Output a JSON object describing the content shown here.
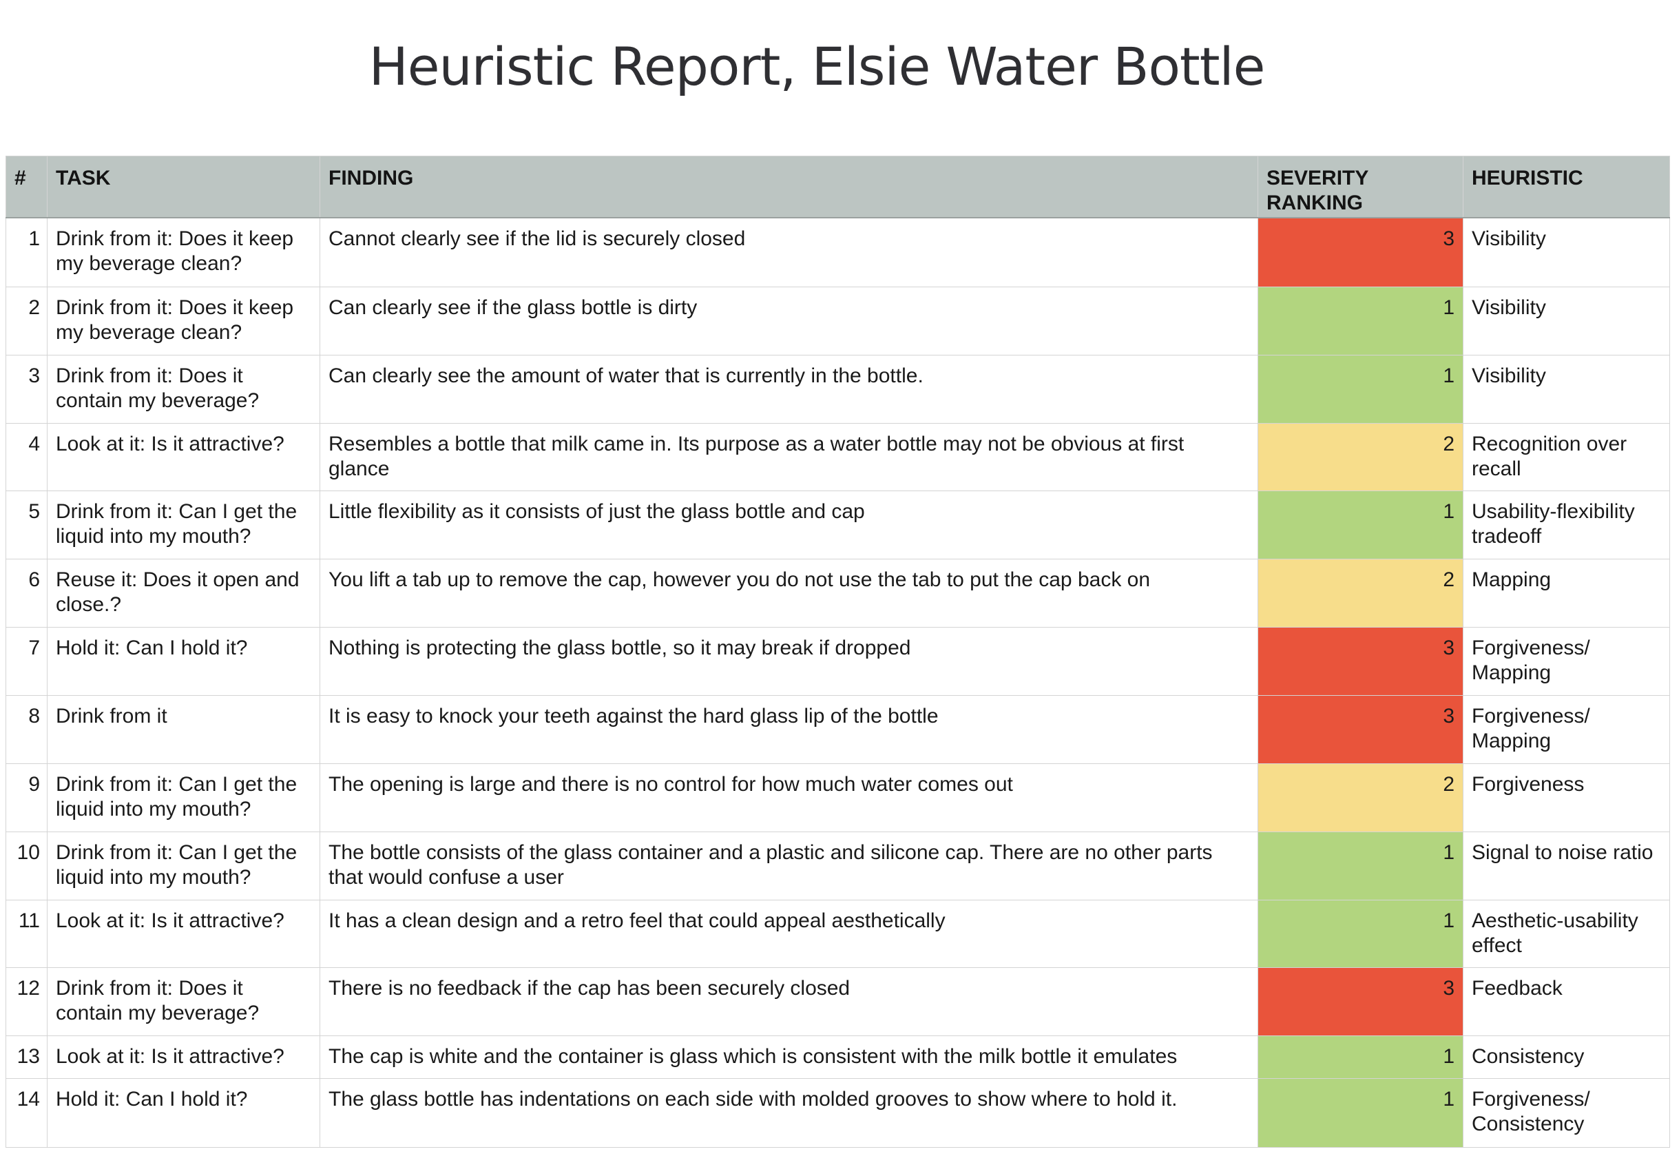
{
  "title": "Heuristic Report, Elsie Water Bottle",
  "columns": {
    "num": "#",
    "task": "TASK",
    "finding": "FINDING",
    "severity": "SEVERITY RANKING",
    "heuristic": "HEURISTIC"
  },
  "severity_colors": {
    "3": "#e9543b",
    "2": "#f7dd8b",
    "1": "#b2d57f"
  },
  "rows": [
    {
      "num": "1",
      "task": "Drink from it: Does it keep my beverage clean?",
      "finding": "Cannot clearly see if the lid is securely closed",
      "severity": "3",
      "heuristic": "Visibility"
    },
    {
      "num": "2",
      "task": "Drink from it: Does it keep my beverage clean?",
      "finding": "Can clearly see if the glass bottle is dirty",
      "severity": "1",
      "heuristic": "Visibility"
    },
    {
      "num": "3",
      "task": "Drink from it: Does it contain my beverage?",
      "finding": "Can clearly see the amount of water that is currently in the bottle.",
      "severity": "1",
      "heuristic": "Visibility"
    },
    {
      "num": "4",
      "task": "Look at it: Is it attractive?",
      "finding": "Resembles a bottle that milk came in. Its purpose as a water bottle may not be obvious at first glance",
      "severity": "2",
      "heuristic": "Recognition over recall"
    },
    {
      "num": "5",
      "task": "Drink from it: Can I get the liquid into my mouth?",
      "finding": "Little flexibility as it consists of just the glass bottle and cap",
      "severity": "1",
      "heuristic": "Usability-flexibility tradeoff"
    },
    {
      "num": "6",
      "task": "Reuse it: Does it open and close.?",
      "finding": "You lift a tab up to remove the cap, however you do not use the tab to put the cap back on",
      "severity": "2",
      "heuristic": "Mapping"
    },
    {
      "num": "7",
      "task": "Hold it: Can I hold it?",
      "finding": "Nothing is protecting the glass bottle, so it may break if dropped",
      "severity": "3",
      "heuristic": "Forgiveness/ Mapping"
    },
    {
      "num": "8",
      "task": "Drink from it",
      "finding": "It is easy to knock your teeth against the hard glass lip of the bottle",
      "severity": "3",
      "heuristic": "Forgiveness/ Mapping"
    },
    {
      "num": "9",
      "task": "Drink from it: Can I get the liquid into my mouth?",
      "finding": "The opening is large and there is no control for how much water comes out",
      "severity": "2",
      "heuristic": "Forgiveness"
    },
    {
      "num": "10",
      "task": "Drink from it: Can I get the liquid into my mouth?",
      "finding": "The bottle consists of the glass container and a plastic and silicone cap. There are no other parts that would confuse a user",
      "severity": "1",
      "heuristic": "Signal to noise ratio"
    },
    {
      "num": "11",
      "task": "Look at it: Is it attractive?",
      "finding": "It has a clean design and a retro feel that could appeal aesthetically",
      "severity": "1",
      "heuristic": "Aesthetic-usability effect"
    },
    {
      "num": "12",
      "task": "Drink from it: Does it contain my beverage?",
      "finding": "There is no feedback if the cap has been securely closed",
      "severity": "3",
      "heuristic": "Feedback"
    },
    {
      "num": "13",
      "task": "Look at it: Is it attractive?",
      "finding": "The cap is white and the container is glass which is consistent with the milk bottle it emulates",
      "severity": "1",
      "heuristic": "Consistency"
    },
    {
      "num": "14",
      "task": "Hold it: Can I hold it?",
      "finding": "The glass bottle has indentations on each side with molded grooves to show where to hold it.",
      "severity": "1",
      "heuristic": "Forgiveness/ Consistency"
    }
  ]
}
